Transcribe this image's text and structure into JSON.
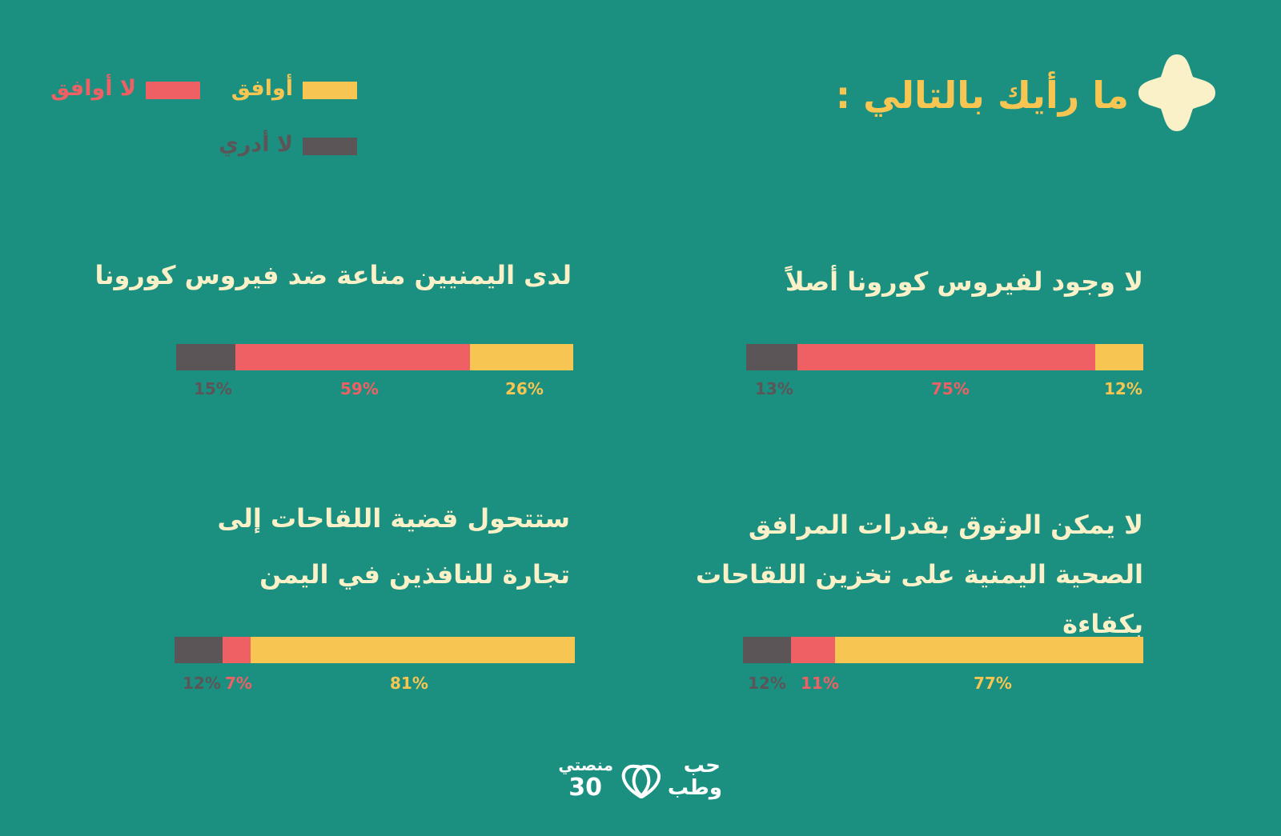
{
  "header": {
    "title": "ما رأيك بالتالي :"
  },
  "legend": {
    "agree": "أوافق",
    "disagree": "لا أوافق",
    "unknown": "لا أدري"
  },
  "colors": {
    "background": "#1b9080",
    "agree": "#f6c552",
    "disagree": "#ef6064",
    "unknown": "#5c5557",
    "title": "#fbf1c8",
    "flower": "#fbf1c8"
  },
  "chart_data": [
    {
      "type": "bar",
      "title": "لا وجود لفيروس كورونا أصلاً",
      "values": {
        "agree": 12,
        "disagree": 75,
        "unknown": 13
      },
      "labels": {
        "agree": "12%",
        "disagree": "75%",
        "unknown": "13%"
      }
    },
    {
      "type": "bar",
      "title": "لدى اليمنيين مناعة ضد فيروس كورونا",
      "values": {
        "agree": 26,
        "disagree": 59,
        "unknown": 15
      },
      "labels": {
        "agree": "26%",
        "disagree": "59%",
        "unknown": "15%"
      }
    },
    {
      "type": "bar",
      "title": "لا يمكن الوثوق بقدرات المرافق الصحية اليمنية على تخزين اللقاحات بكفاءة",
      "values": {
        "agree": 77,
        "disagree": 11,
        "unknown": 12
      },
      "labels": {
        "agree": "77%",
        "disagree": "11%",
        "unknown": "12%"
      }
    },
    {
      "type": "bar",
      "title": "ستتحول قضية اللقاحات إلى تجارة للنافذين في اليمن",
      "values": {
        "agree": 81,
        "disagree": 7,
        "unknown": 12
      },
      "labels": {
        "agree": "81%",
        "disagree": "7%",
        "unknown": "12%"
      }
    }
  ],
  "footer": {
    "logo_line1": "حب",
    "logo_line2": "وطب",
    "logo_brand": "منصتي",
    "logo_number": "30"
  }
}
